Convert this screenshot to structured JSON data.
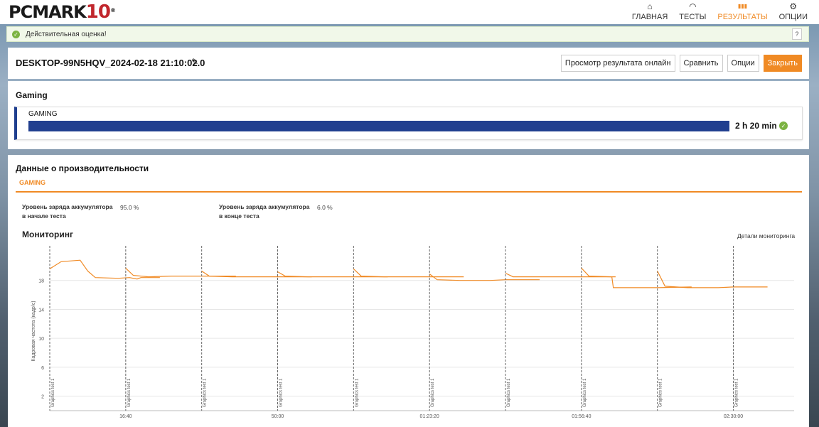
{
  "header": {
    "logo_text": "PCMARK",
    "logo_number": "10",
    "logo_reg": "®",
    "nav": [
      {
        "icon": "home-icon",
        "glyph": "⌂",
        "label": "ГЛАВНАЯ",
        "active": false
      },
      {
        "icon": "gauge-icon",
        "glyph": "◠",
        "label": "ТЕСТЫ",
        "active": false
      },
      {
        "icon": "bar-chart-icon",
        "glyph": "▮▮▮",
        "label": "РЕЗУЛЬТАТЫ",
        "active": true
      },
      {
        "icon": "gear-icon",
        "glyph": "⚙",
        "label": "ОПЦИИ",
        "active": false
      }
    ]
  },
  "validity": {
    "message": "Действительная оценка!",
    "help_label": "?"
  },
  "result": {
    "title": "DESKTOP-99N5HQV_2024-02-18 21:10:02.0",
    "buttons": {
      "view_online": "Просмотр результата онлайн",
      "compare": "Сравнить",
      "options": "Опции",
      "close": "Закрыть"
    }
  },
  "gaming": {
    "section_title": "Gaming",
    "label": "GAMING",
    "value": "2 h 20 min",
    "bar_fraction": 1.0
  },
  "performance": {
    "title": "Данные о производительности",
    "tab": "GAMING",
    "stats": [
      {
        "label": "Уровень заряда аккумулятора в начале теста",
        "value": "95.0 %"
      },
      {
        "label": "Уровень заряда аккумулятора в конце теста",
        "value": "6.0 %"
      }
    ],
    "monitoring_title": "Мониторинг",
    "monitoring_details": "Детали мониторинга"
  },
  "chart_data": {
    "type": "line",
    "ylabel": "Кадровая частота (кадр/с)",
    "yticks": [
      "2",
      "6",
      "10",
      "14",
      "18"
    ],
    "ylim": [
      0,
      22
    ],
    "xticks": [
      "16:40",
      "50:00",
      "01:23:20",
      "01:56:40",
      "02:30:00"
    ],
    "xtick_values": [
      1000,
      3000,
      5000,
      7000,
      9000
    ],
    "xlim": [
      0,
      9800
    ],
    "line_color": "#f08a24",
    "grid": true,
    "marker_label": "Graphics test 1",
    "segments": [
      {
        "start": 0,
        "points": [
          [
            0,
            19.6
          ],
          [
            150,
            20.6
          ],
          [
            400,
            20.8
          ],
          [
            500,
            19.3
          ],
          [
            600,
            18.4
          ],
          [
            900,
            18.3
          ],
          [
            1050,
            18.4
          ],
          [
            1150,
            18.2
          ],
          [
            1200,
            18.4
          ],
          [
            1450,
            18.4
          ]
        ]
      },
      {
        "start": 1000,
        "points": [
          [
            1000,
            19.7
          ],
          [
            1100,
            18.7
          ],
          [
            1300,
            18.5
          ],
          [
            1600,
            18.6
          ],
          [
            2000,
            18.6
          ],
          [
            2450,
            18.6
          ]
        ]
      },
      {
        "start": 2000,
        "points": [
          [
            2000,
            19.3
          ],
          [
            2100,
            18.6
          ],
          [
            2400,
            18.5
          ],
          [
            2800,
            18.5
          ],
          [
            3000,
            18.5
          ],
          [
            3450,
            18.5
          ]
        ]
      },
      {
        "start": 3000,
        "points": [
          [
            3000,
            19.2
          ],
          [
            3100,
            18.6
          ],
          [
            3400,
            18.5
          ],
          [
            3800,
            18.5
          ],
          [
            4450,
            18.5
          ]
        ]
      },
      {
        "start": 4000,
        "points": [
          [
            4000,
            19.6
          ],
          [
            4100,
            18.6
          ],
          [
            4400,
            18.5
          ],
          [
            4800,
            18.5
          ],
          [
            5450,
            18.5
          ]
        ]
      },
      {
        "start": 5000,
        "points": [
          [
            5000,
            18.9
          ],
          [
            5100,
            18.1
          ],
          [
            5400,
            18.0
          ],
          [
            5800,
            18.0
          ],
          [
            6000,
            18.1
          ],
          [
            6450,
            18.1
          ]
        ]
      },
      {
        "start": 6000,
        "points": [
          [
            6000,
            19.0
          ],
          [
            6100,
            18.5
          ],
          [
            6400,
            18.5
          ],
          [
            6800,
            18.5
          ],
          [
            7000,
            18.5
          ],
          [
            7450,
            18.5
          ]
        ]
      },
      {
        "start": 7000,
        "points": [
          [
            7000,
            19.7
          ],
          [
            7100,
            18.6
          ],
          [
            7400,
            18.5
          ],
          [
            7420,
            17.0
          ],
          [
            7700,
            17.0
          ],
          [
            8000,
            17.0
          ],
          [
            8450,
            17.1
          ]
        ]
      },
      {
        "start": 8000,
        "points": [
          [
            8000,
            19.3
          ],
          [
            8100,
            17.2
          ],
          [
            8400,
            17.0
          ],
          [
            8700,
            17.0
          ],
          [
            8800,
            17.0
          ],
          [
            9000,
            17.1
          ],
          [
            9450,
            17.1
          ]
        ]
      },
      {
        "start": 9000,
        "points": []
      }
    ]
  }
}
